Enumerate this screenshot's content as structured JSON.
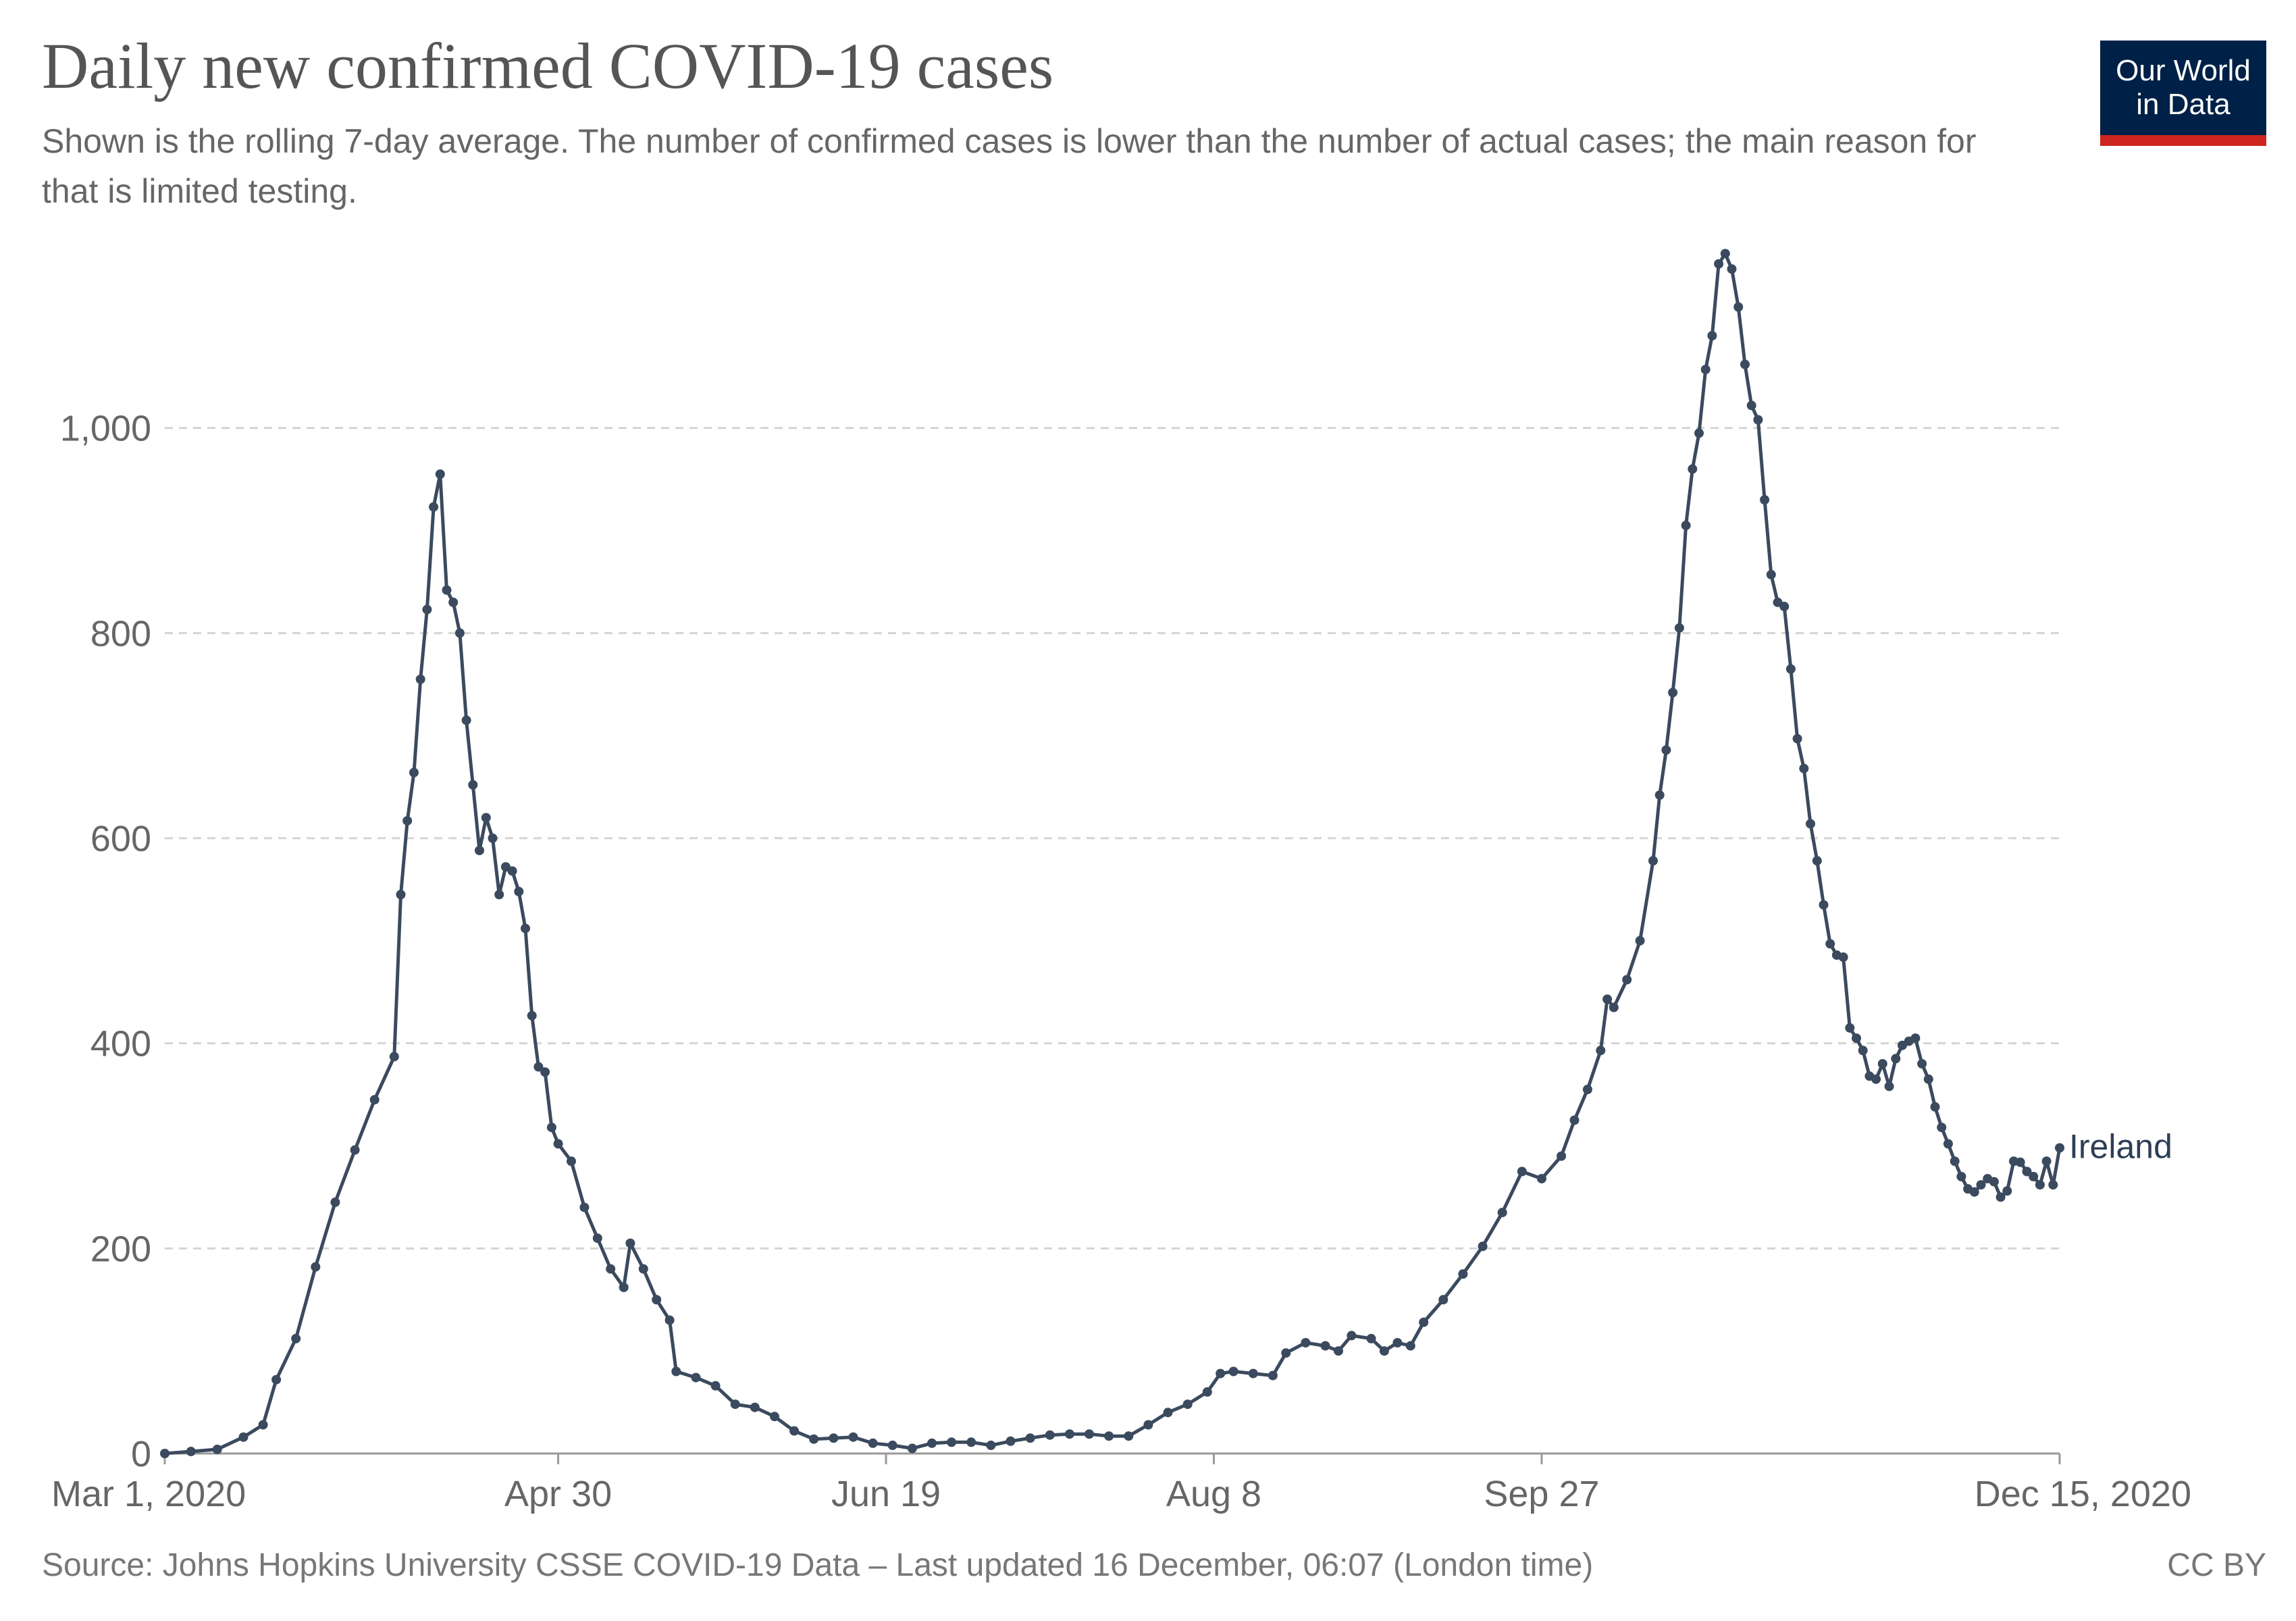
{
  "header": {
    "title": "Daily new confirmed COVID-19 cases",
    "subtitle": "Shown is the rolling 7-day average. The number of confirmed cases is lower than the number of actual cases; the main reason for that is limited testing."
  },
  "logo": {
    "line1": "Our World",
    "line2": "in Data",
    "bg": "#002147",
    "accent": "#ce261e"
  },
  "footer": {
    "source": "Source: Johns Hopkins University CSSE COVID-19 Data – Last updated 16 December, 06:07 (London time)",
    "license": "CC BY"
  },
  "chart_data": {
    "type": "line",
    "title": "Daily new confirmed COVID-19 cases",
    "subtitle": "Shown is the rolling 7-day average. The number of confirmed cases is lower than the number of actual cases; the main reason for that is limited testing.",
    "xlabel": "",
    "ylabel": "",
    "xlim": [
      "2020-03-01",
      "2020-12-15"
    ],
    "ylim": [
      0,
      1200
    ],
    "x_ticks": [
      {
        "date": "2020-03-01",
        "label": "Mar 1, 2020"
      },
      {
        "date": "2020-04-30",
        "label": "Apr 30"
      },
      {
        "date": "2020-06-19",
        "label": "Jun 19"
      },
      {
        "date": "2020-08-08",
        "label": "Aug 8"
      },
      {
        "date": "2020-09-27",
        "label": "Sep 27"
      },
      {
        "date": "2020-12-15",
        "label": "Dec 15, 2020"
      }
    ],
    "y_ticks": [
      0,
      200,
      400,
      600,
      800,
      1000
    ],
    "y_tick_labels": [
      "0",
      "200",
      "400",
      "600",
      "800",
      "1,000"
    ],
    "grid": "horizontal dashed",
    "series_color": "#3b4a5e",
    "series": [
      {
        "name": "Ireland",
        "points": [
          [
            "2020-03-01",
            0
          ],
          [
            "2020-03-05",
            2
          ],
          [
            "2020-03-09",
            4
          ],
          [
            "2020-03-13",
            16
          ],
          [
            "2020-03-16",
            28
          ],
          [
            "2020-03-18",
            72
          ],
          [
            "2020-03-21",
            112
          ],
          [
            "2020-03-24",
            182
          ],
          [
            "2020-03-27",
            245
          ],
          [
            "2020-03-30",
            296
          ],
          [
            "2020-04-02",
            345
          ],
          [
            "2020-04-05",
            387
          ],
          [
            "2020-04-06",
            545
          ],
          [
            "2020-04-07",
            617
          ],
          [
            "2020-04-08",
            664
          ],
          [
            "2020-04-09",
            755
          ],
          [
            "2020-04-10",
            823
          ],
          [
            "2020-04-11",
            923
          ],
          [
            "2020-04-12",
            955
          ],
          [
            "2020-04-13",
            842
          ],
          [
            "2020-04-14",
            830
          ],
          [
            "2020-04-15",
            800
          ],
          [
            "2020-04-16",
            715
          ],
          [
            "2020-04-17",
            652
          ],
          [
            "2020-04-18",
            588
          ],
          [
            "2020-04-19",
            620
          ],
          [
            "2020-04-20",
            600
          ],
          [
            "2020-04-21",
            545
          ],
          [
            "2020-04-22",
            572
          ],
          [
            "2020-04-23",
            568
          ],
          [
            "2020-04-24",
            548
          ],
          [
            "2020-04-25",
            512
          ],
          [
            "2020-04-26",
            427
          ],
          [
            "2020-04-27",
            377
          ],
          [
            "2020-04-28",
            372
          ],
          [
            "2020-04-29",
            318
          ],
          [
            "2020-04-30",
            302
          ],
          [
            "2020-05-02",
            285
          ],
          [
            "2020-05-04",
            240
          ],
          [
            "2020-05-06",
            210
          ],
          [
            "2020-05-08",
            180
          ],
          [
            "2020-05-10",
            162
          ],
          [
            "2020-05-11",
            205
          ],
          [
            "2020-05-13",
            180
          ],
          [
            "2020-05-15",
            150
          ],
          [
            "2020-05-17",
            130
          ],
          [
            "2020-05-18",
            80
          ],
          [
            "2020-05-21",
            74
          ],
          [
            "2020-05-24",
            66
          ],
          [
            "2020-05-27",
            48
          ],
          [
            "2020-05-30",
            45
          ],
          [
            "2020-06-02",
            36
          ],
          [
            "2020-06-05",
            22
          ],
          [
            "2020-06-08",
            14
          ],
          [
            "2020-06-11",
            15
          ],
          [
            "2020-06-14",
            16
          ],
          [
            "2020-06-17",
            10
          ],
          [
            "2020-06-20",
            8
          ],
          [
            "2020-06-23",
            5
          ],
          [
            "2020-06-26",
            10
          ],
          [
            "2020-06-29",
            11
          ],
          [
            "2020-07-02",
            11
          ],
          [
            "2020-07-05",
            8
          ],
          [
            "2020-07-08",
            12
          ],
          [
            "2020-07-11",
            15
          ],
          [
            "2020-07-14",
            18
          ],
          [
            "2020-07-17",
            19
          ],
          [
            "2020-07-20",
            19
          ],
          [
            "2020-07-23",
            17
          ],
          [
            "2020-07-26",
            17
          ],
          [
            "2020-07-29",
            28
          ],
          [
            "2020-08-01",
            40
          ],
          [
            "2020-08-04",
            48
          ],
          [
            "2020-08-07",
            60
          ],
          [
            "2020-08-09",
            78
          ],
          [
            "2020-08-11",
            80
          ],
          [
            "2020-08-14",
            78
          ],
          [
            "2020-08-17",
            76
          ],
          [
            "2020-08-19",
            98
          ],
          [
            "2020-08-22",
            108
          ],
          [
            "2020-08-25",
            105
          ],
          [
            "2020-08-27",
            100
          ],
          [
            "2020-08-29",
            115
          ],
          [
            "2020-09-01",
            112
          ],
          [
            "2020-09-03",
            100
          ],
          [
            "2020-09-05",
            108
          ],
          [
            "2020-09-07",
            105
          ],
          [
            "2020-09-09",
            128
          ],
          [
            "2020-09-12",
            150
          ],
          [
            "2020-09-15",
            175
          ],
          [
            "2020-09-18",
            202
          ],
          [
            "2020-09-21",
            235
          ],
          [
            "2020-09-24",
            275
          ],
          [
            "2020-09-27",
            268
          ],
          [
            "2020-09-30",
            290
          ],
          [
            "2020-10-02",
            325
          ],
          [
            "2020-10-04",
            355
          ],
          [
            "2020-10-06",
            393
          ],
          [
            "2020-10-07",
            443
          ],
          [
            "2020-10-08",
            435
          ],
          [
            "2020-10-10",
            462
          ],
          [
            "2020-10-12",
            500
          ],
          [
            "2020-10-14",
            578
          ],
          [
            "2020-10-15",
            642
          ],
          [
            "2020-10-16",
            686
          ],
          [
            "2020-10-17",
            742
          ],
          [
            "2020-10-18",
            805
          ],
          [
            "2020-10-19",
            905
          ],
          [
            "2020-10-20",
            960
          ],
          [
            "2020-10-21",
            995
          ],
          [
            "2020-10-22",
            1057
          ],
          [
            "2020-10-23",
            1090
          ],
          [
            "2020-10-24",
            1160
          ],
          [
            "2020-10-25",
            1170
          ],
          [
            "2020-10-26",
            1155
          ],
          [
            "2020-10-27",
            1118
          ],
          [
            "2020-10-28",
            1062
          ],
          [
            "2020-10-29",
            1022
          ],
          [
            "2020-10-30",
            1008
          ],
          [
            "2020-10-31",
            930
          ],
          [
            "2020-11-01",
            857
          ],
          [
            "2020-11-02",
            830
          ],
          [
            "2020-11-03",
            826
          ],
          [
            "2020-11-04",
            765
          ],
          [
            "2020-11-05",
            697
          ],
          [
            "2020-11-06",
            668
          ],
          [
            "2020-11-07",
            614
          ],
          [
            "2020-11-08",
            578
          ],
          [
            "2020-11-09",
            535
          ],
          [
            "2020-11-10",
            497
          ],
          [
            "2020-11-11",
            486
          ],
          [
            "2020-11-12",
            484
          ],
          [
            "2020-11-13",
            415
          ],
          [
            "2020-11-14",
            405
          ],
          [
            "2020-11-15",
            393
          ],
          [
            "2020-11-16",
            368
          ],
          [
            "2020-11-17",
            365
          ],
          [
            "2020-11-18",
            380
          ],
          [
            "2020-11-19",
            358
          ],
          [
            "2020-11-20",
            385
          ],
          [
            "2020-11-21",
            398
          ],
          [
            "2020-11-22",
            402
          ],
          [
            "2020-11-23",
            405
          ],
          [
            "2020-11-24",
            380
          ],
          [
            "2020-11-25",
            365
          ],
          [
            "2020-11-26",
            338
          ],
          [
            "2020-11-27",
            318
          ],
          [
            "2020-11-28",
            302
          ],
          [
            "2020-11-29",
            285
          ],
          [
            "2020-11-30",
            270
          ],
          [
            "2020-12-01",
            258
          ],
          [
            "2020-12-02",
            255
          ],
          [
            "2020-12-03",
            262
          ],
          [
            "2020-12-04",
            268
          ],
          [
            "2020-12-05",
            265
          ],
          [
            "2020-12-06",
            250
          ],
          [
            "2020-12-07",
            256
          ],
          [
            "2020-12-08",
            285
          ],
          [
            "2020-12-09",
            284
          ],
          [
            "2020-12-10",
            275
          ],
          [
            "2020-12-11",
            270
          ],
          [
            "2020-12-12",
            262
          ],
          [
            "2020-12-13",
            285
          ],
          [
            "2020-12-14",
            262
          ],
          [
            "2020-12-15",
            298
          ]
        ]
      }
    ]
  }
}
